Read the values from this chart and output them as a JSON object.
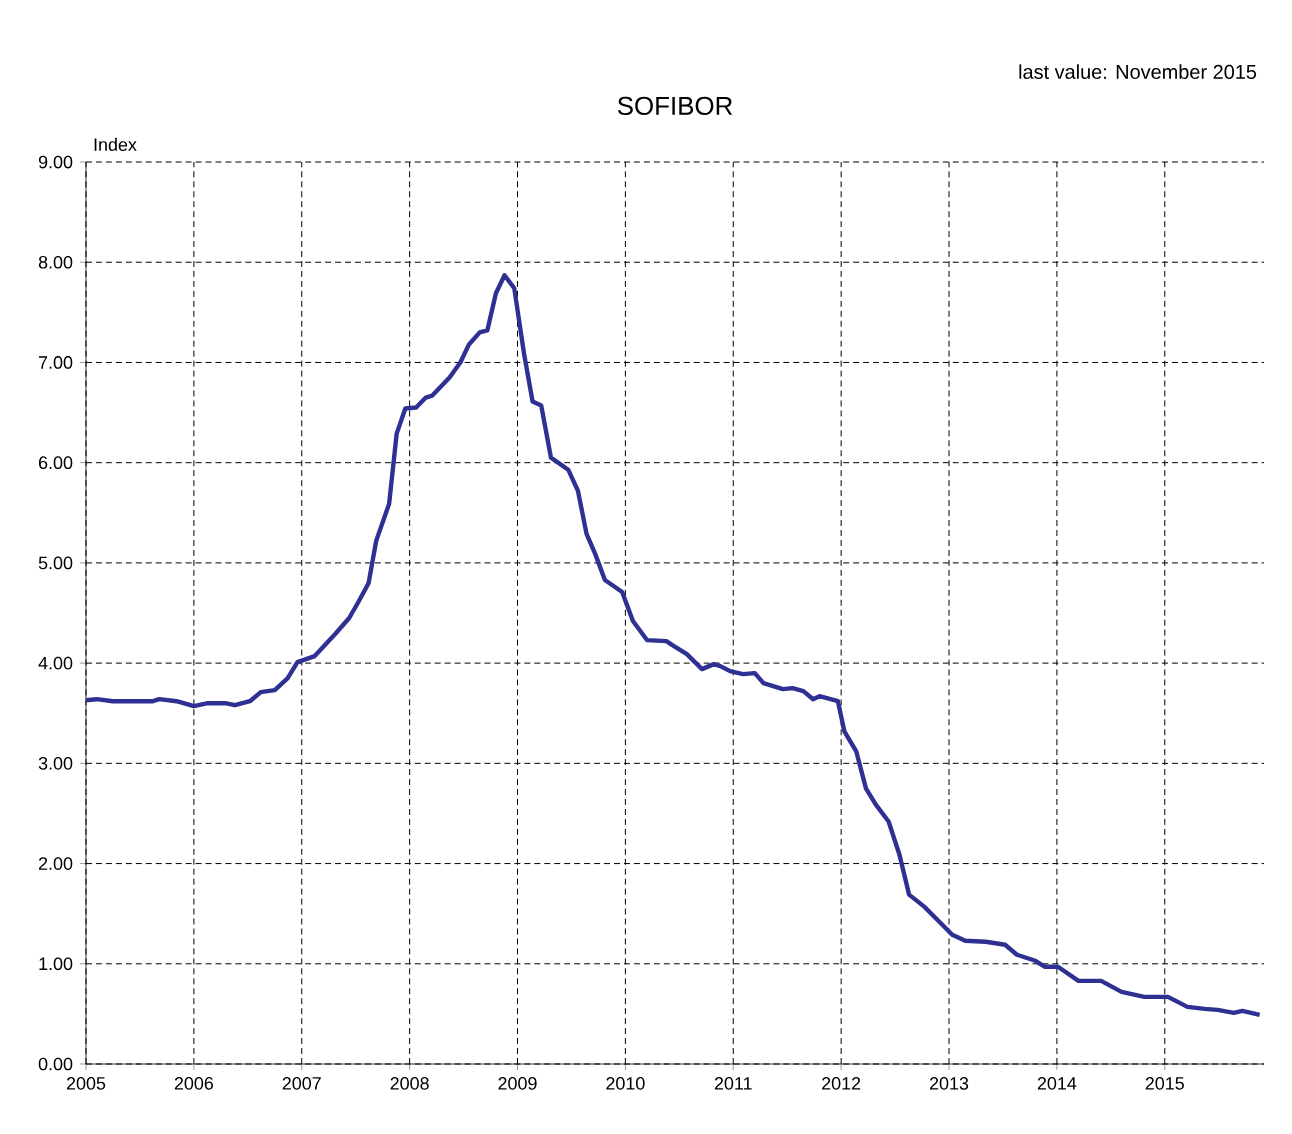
{
  "chart_data": {
    "type": "line",
    "title": "SOFIBOR",
    "ylabel": "Index",
    "annotations": [
      "last value: November 2015"
    ],
    "xlim": [
      2005,
      2015.92
    ],
    "xticks": [
      2005,
      2006,
      2007,
      2008,
      2009,
      2010,
      2011,
      2012,
      2013,
      2014,
      2015
    ],
    "ylim": [
      0,
      9
    ],
    "yticks": [
      {
        "value": 0,
        "label": "0.00"
      },
      {
        "value": 1,
        "label": "1.00"
      },
      {
        "value": 2,
        "label": "2.00"
      },
      {
        "value": 3,
        "label": "3.00"
      },
      {
        "value": 4,
        "label": "4.00"
      },
      {
        "value": 5,
        "label": "5.00"
      },
      {
        "value": 6,
        "label": "6.00"
      },
      {
        "value": 7,
        "label": "7.00"
      },
      {
        "value": 8,
        "label": "8.00"
      },
      {
        "value": 9,
        "label": "9.00"
      }
    ],
    "grid": true,
    "marker": "none",
    "line_style": "solid",
    "series": [
      {
        "color": "#2e3192",
        "x": [
          2005.0,
          2005.1,
          2005.25,
          2005.62,
          2005.68,
          2005.84,
          2006.0,
          2006.13,
          2006.29,
          2006.38,
          2006.52,
          2006.62,
          2006.75,
          2006.87,
          2006.96,
          2007.12,
          2007.31,
          2007.44,
          2007.53,
          2007.62,
          2007.69,
          2007.81,
          2007.88,
          2007.96,
          2008.06,
          2008.15,
          2008.21,
          2008.37,
          2008.47,
          2008.55,
          2008.65,
          2008.72,
          2008.8,
          2008.88,
          2008.97,
          2009.06,
          2009.14,
          2009.22,
          2009.31,
          2009.47,
          2009.56,
          2009.64,
          2009.72,
          2009.81,
          2009.97,
          2010.07,
          2010.2,
          2010.38,
          2010.45,
          2010.57,
          2010.71,
          2010.82,
          2010.88,
          2010.97,
          2011.09,
          2011.2,
          2011.28,
          2011.46,
          2011.55,
          2011.65,
          2011.74,
          2011.8,
          2011.97,
          2012.03,
          2012.14,
          2012.23,
          2012.32,
          2012.44,
          2012.54,
          2012.63,
          2012.77,
          2012.91,
          2013.03,
          2013.15,
          2013.34,
          2013.52,
          2013.63,
          2013.8,
          2013.89,
          2014.01,
          2014.2,
          2014.41,
          2014.6,
          2014.81,
          2015.03,
          2015.21,
          2015.37,
          2015.49,
          2015.64,
          2015.72,
          2015.88
        ],
        "values": [
          3.63,
          3.64,
          3.62,
          3.62,
          3.64,
          3.62,
          3.57,
          3.6,
          3.6,
          3.58,
          3.62,
          3.71,
          3.73,
          3.85,
          4.01,
          4.07,
          4.29,
          4.45,
          4.62,
          4.8,
          5.22,
          5.59,
          6.29,
          6.54,
          6.55,
          6.65,
          6.67,
          6.85,
          7.0,
          7.18,
          7.3,
          7.32,
          7.69,
          7.87,
          7.74,
          7.09,
          6.61,
          6.57,
          6.05,
          5.93,
          5.72,
          5.29,
          5.09,
          4.83,
          4.71,
          4.42,
          4.23,
          4.22,
          4.17,
          4.09,
          3.94,
          3.99,
          3.97,
          3.92,
          3.89,
          3.9,
          3.8,
          3.74,
          3.75,
          3.72,
          3.64,
          3.67,
          3.62,
          3.32,
          3.12,
          2.75,
          2.59,
          2.42,
          2.09,
          1.69,
          1.57,
          1.42,
          1.29,
          1.23,
          1.22,
          1.19,
          1.09,
          1.03,
          0.97,
          0.97,
          0.83,
          0.83,
          0.72,
          0.67,
          0.67,
          0.57,
          0.55,
          0.54,
          0.51,
          0.53,
          0.49
        ]
      }
    ]
  }
}
